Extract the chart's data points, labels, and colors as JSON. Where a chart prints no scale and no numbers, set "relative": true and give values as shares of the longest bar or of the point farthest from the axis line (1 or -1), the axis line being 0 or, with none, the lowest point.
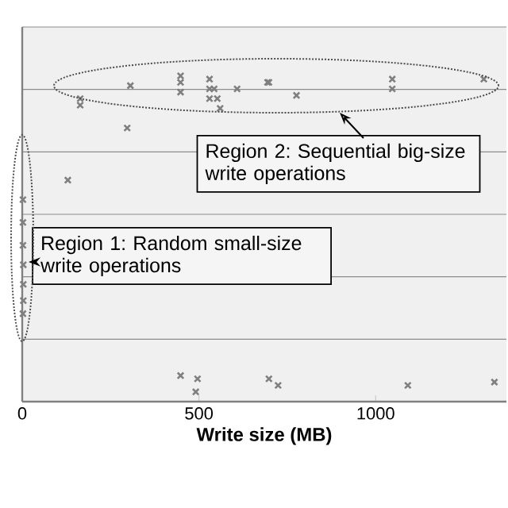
{
  "chart_data": {
    "type": "scatter",
    "xlabel": "Write size (MB)",
    "relative": true,
    "color": "#7f7f7f",
    "marker": "cross",
    "grid": "y",
    "tick_labels": "x",
    "xlim": [
      0,
      1370
    ],
    "xticks": [
      0,
      500,
      1000
    ],
    "x": [
      164,
      164,
      306,
      297,
      448,
      448,
      448,
      530,
      530,
      530,
      552,
      560,
      543,
      608,
      694,
      698,
      776,
      1047,
      1047,
      1306,
      129,
      2,
      2,
      2,
      3,
      3,
      3,
      2,
      448,
      496,
      491,
      698,
      724,
      1091,
      1336
    ],
    "values": [
      0.93,
      0.91,
      0.97,
      0.84,
      1.0,
      0.98,
      0.95,
      0.99,
      0.96,
      0.93,
      0.93,
      0.9,
      0.96,
      0.96,
      0.98,
      0.98,
      0.94,
      0.99,
      0.96,
      0.99,
      0.68,
      0.62,
      0.55,
      0.48,
      0.42,
      0.36,
      0.31,
      0.27,
      0.08,
      0.07,
      0.03,
      0.07,
      0.05,
      0.05,
      0.06
    ],
    "annotations": [
      "Region 2: Sequential big-size write operations",
      "Region 1: Random small-size write operations"
    ]
  }
}
